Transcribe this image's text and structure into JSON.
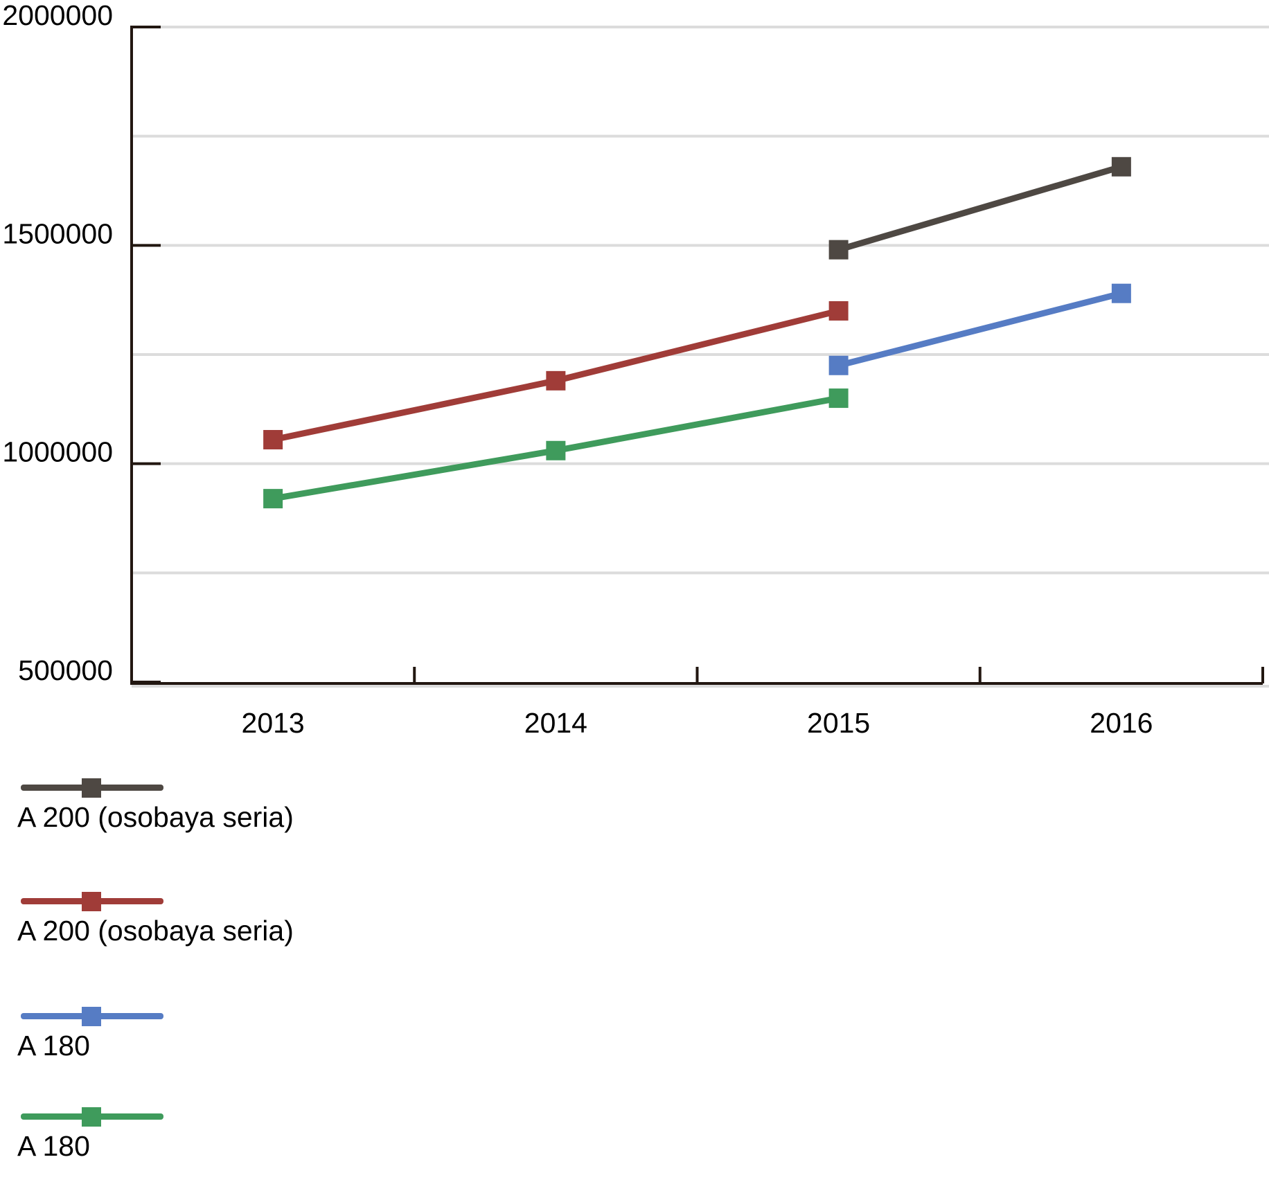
{
  "chart_data": {
    "type": "line",
    "title": "",
    "xlabel": "",
    "ylabel": "",
    "categories": [
      "2013",
      "2014",
      "2015",
      "2016"
    ],
    "series": [
      {
        "name": "A 200 (osobaya seria)",
        "color": "#4e4843",
        "values": [
          null,
          null,
          1490000,
          1680000
        ]
      },
      {
        "name": "A 200 (osobaya seria)",
        "color": "#a03c38",
        "values": [
          1055000,
          1190000,
          1350000,
          null
        ]
      },
      {
        "name": "A 180",
        "color": "#567cc4",
        "values": [
          null,
          null,
          1225000,
          1390000
        ]
      },
      {
        "name": "A 180",
        "color": "#3f9b5c",
        "values": [
          920000,
          1030000,
          1150000,
          null
        ]
      }
    ],
    "ylim": [
      500000,
      2000000
    ],
    "yticks_labeled": [
      "2000000",
      "1500000",
      "1000000",
      "500000"
    ],
    "gridline_step": 250000,
    "grid": true,
    "legend_position": "bottom-left",
    "marker": "square",
    "colors": {
      "grid": "#dcdcdc",
      "axis": "#221711",
      "text": "#000000",
      "background": "#ffffff"
    }
  }
}
